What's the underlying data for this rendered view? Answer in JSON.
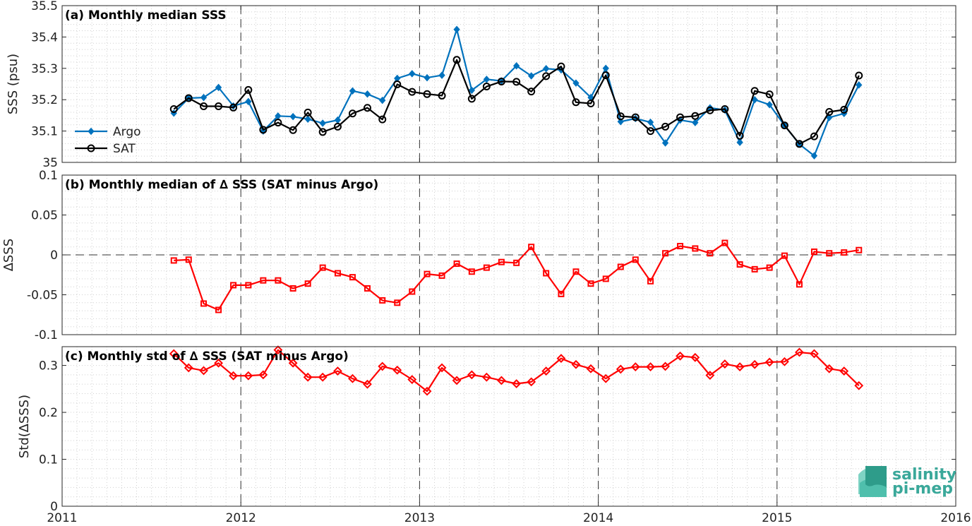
{
  "logo": {
    "line1": "salinity",
    "line2": "pi-mep"
  },
  "colors": {
    "argo": "#0072BD",
    "sat": "#000000",
    "diff": "#ff0000",
    "logo": "#3aa89a"
  },
  "chart_data": [
    {
      "type": "line",
      "title": "(a) Monthly median SSS",
      "ylabel": "SSS (psu)",
      "xlim": [
        2011,
        2016
      ],
      "ylim": [
        35,
        35.5
      ],
      "yticks": [
        "35",
        "35.1",
        "35.2",
        "35.3",
        "35.4",
        "35.5"
      ],
      "grid": true,
      "legend": "left",
      "x": [
        2011.625,
        2011.708,
        2011.792,
        2011.875,
        2011.958,
        2012.042,
        2012.125,
        2012.208,
        2012.292,
        2012.375,
        2012.458,
        2012.542,
        2012.625,
        2012.708,
        2012.792,
        2012.875,
        2012.958,
        2013.042,
        2013.125,
        2013.208,
        2013.292,
        2013.375,
        2013.458,
        2013.542,
        2013.625,
        2013.708,
        2013.792,
        2013.875,
        2013.958,
        2014.042,
        2014.125,
        2014.208,
        2014.292,
        2014.375,
        2014.458,
        2014.542,
        2014.625,
        2014.708,
        2014.792,
        2014.875,
        2014.958,
        2015.042,
        2015.125,
        2015.208,
        2015.292,
        2015.375,
        2015.458
      ],
      "series": [
        {
          "name": "Argo",
          "marker": "diamond",
          "values": [
            35.157,
            35.205,
            35.207,
            35.239,
            35.18,
            35.194,
            35.1,
            35.148,
            35.146,
            35.138,
            35.125,
            35.135,
            35.228,
            35.218,
            35.198,
            35.268,
            35.283,
            35.27,
            35.278,
            35.424,
            35.23,
            35.265,
            35.26,
            35.308,
            35.276,
            35.299,
            35.295,
            35.253,
            35.207,
            35.3,
            35.13,
            35.14,
            35.128,
            35.062,
            35.135,
            35.127,
            35.174,
            35.167,
            35.064,
            35.2,
            35.184,
            35.118,
            35.058,
            35.021,
            35.143,
            35.156,
            35.247
          ]
        },
        {
          "name": "SAT",
          "marker": "circle",
          "values": [
            35.17,
            35.205,
            35.179,
            35.179,
            35.175,
            35.231,
            35.104,
            35.127,
            35.103,
            35.159,
            35.097,
            35.114,
            35.156,
            35.174,
            35.137,
            35.249,
            35.225,
            35.218,
            35.213,
            35.327,
            35.203,
            35.242,
            35.258,
            35.257,
            35.226,
            35.275,
            35.306,
            35.192,
            35.188,
            35.278,
            35.147,
            35.144,
            35.1,
            35.114,
            35.144,
            35.148,
            35.166,
            35.17,
            35.085,
            35.228,
            35.217,
            35.118,
            35.059,
            35.083,
            35.161,
            35.168,
            35.277
          ]
        }
      ]
    },
    {
      "type": "line",
      "title": "(b) Monthly median of ∆ SSS (SAT minus Argo)",
      "ylabel": "∆SSS",
      "xlim": [
        2011,
        2016
      ],
      "ylim": [
        -0.1,
        0.1
      ],
      "yticks": [
        "-0.1",
        "-0.05",
        "0",
        "0.05",
        "0.1"
      ],
      "grid": true,
      "x": [
        2011.625,
        2011.708,
        2011.792,
        2011.875,
        2011.958,
        2012.042,
        2012.125,
        2012.208,
        2012.292,
        2012.375,
        2012.458,
        2012.542,
        2012.625,
        2012.708,
        2012.792,
        2012.875,
        2012.958,
        2013.042,
        2013.125,
        2013.208,
        2013.292,
        2013.375,
        2013.458,
        2013.542,
        2013.625,
        2013.708,
        2013.792,
        2013.875,
        2013.958,
        2014.042,
        2014.125,
        2014.208,
        2014.292,
        2014.375,
        2014.458,
        2014.542,
        2014.625,
        2014.708,
        2014.792,
        2014.875,
        2014.958,
        2015.042,
        2015.125,
        2015.208,
        2015.292,
        2015.375,
        2015.458
      ],
      "series": [
        {
          "marker": "square",
          "values": [
            -0.007,
            -0.006,
            -0.061,
            -0.069,
            -0.038,
            -0.038,
            -0.032,
            -0.032,
            -0.042,
            -0.036,
            -0.016,
            -0.023,
            -0.028,
            -0.042,
            -0.057,
            -0.06,
            -0.046,
            -0.024,
            -0.026,
            -0.011,
            -0.021,
            -0.016,
            -0.009,
            -0.01,
            0.01,
            -0.023,
            -0.049,
            -0.021,
            -0.036,
            -0.03,
            -0.015,
            -0.006,
            -0.033,
            0.002,
            0.011,
            0.008,
            0.002,
            0.015,
            -0.012,
            -0.018,
            -0.016,
            -0.001,
            -0.037,
            0.004,
            0.002,
            0.003,
            0.006
          ]
        }
      ]
    },
    {
      "type": "line",
      "title": "(c) Monthly std of ∆ SSS (SAT minus Argo)",
      "ylabel": "Std(∆SSS)",
      "xlim": [
        2011,
        2016
      ],
      "ylim": [
        0,
        0.34
      ],
      "xticks": [
        "2011",
        "2012",
        "2013",
        "2014",
        "2015",
        "2016"
      ],
      "yticks": [
        "0",
        "0.1",
        "0.2",
        "0.3"
      ],
      "grid": true,
      "x": [
        2011.625,
        2011.708,
        2011.792,
        2011.875,
        2011.958,
        2012.042,
        2012.125,
        2012.208,
        2012.292,
        2012.375,
        2012.458,
        2012.542,
        2012.625,
        2012.708,
        2012.792,
        2012.875,
        2012.958,
        2013.042,
        2013.125,
        2013.208,
        2013.292,
        2013.375,
        2013.458,
        2013.542,
        2013.625,
        2013.708,
        2013.792,
        2013.875,
        2013.958,
        2014.042,
        2014.125,
        2014.208,
        2014.292,
        2014.375,
        2014.458,
        2014.542,
        2014.625,
        2014.708,
        2014.792,
        2014.875,
        2014.958,
        2015.042,
        2015.125,
        2015.208,
        2015.292,
        2015.375,
        2015.458
      ],
      "series": [
        {
          "marker": "diamond",
          "values": [
            0.325,
            0.295,
            0.289,
            0.305,
            0.278,
            0.278,
            0.28,
            0.333,
            0.305,
            0.275,
            0.275,
            0.288,
            0.272,
            0.26,
            0.298,
            0.29,
            0.27,
            0.245,
            0.295,
            0.268,
            0.28,
            0.275,
            0.268,
            0.261,
            0.265,
            0.288,
            0.315,
            0.302,
            0.293,
            0.272,
            0.292,
            0.297,
            0.297,
            0.298,
            0.32,
            0.317,
            0.279,
            0.303,
            0.297,
            0.302,
            0.307,
            0.308,
            0.328,
            0.325,
            0.293,
            0.288,
            0.257
          ]
        }
      ]
    }
  ]
}
